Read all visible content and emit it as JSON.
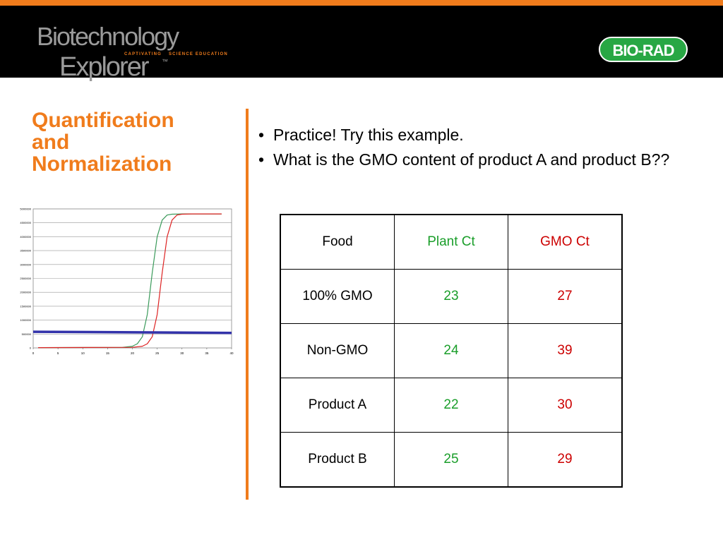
{
  "brand": {
    "title_line1": "Biotechnology",
    "title_line2": "Explorer",
    "trademark": "™",
    "tagline_left": "CAPTIVATING",
    "tagline_right": "SCIENCE EDUCATION",
    "partner_logo": "BIO-RAD",
    "accent_color": "#f07c1c",
    "partner_color": "#28a744"
  },
  "slide": {
    "title_lines": [
      "Quantification",
      "and",
      "Normalization"
    ],
    "bullets": [
      "Practice!  Try this example.",
      "What is the GMO content of product A and product B??"
    ]
  },
  "table": {
    "headers": [
      "Food",
      "Plant Ct",
      "GMO Ct"
    ],
    "rows": [
      [
        "100% GMO",
        "23",
        "27"
      ],
      [
        "Non-GMO",
        "24",
        "39"
      ],
      [
        "Product A",
        "22",
        "30"
      ],
      [
        "Product B",
        "25",
        "29"
      ]
    ],
    "colors": {
      "plant": "#1a9e2a",
      "gmo": "#cc0000"
    }
  },
  "chart_data": {
    "type": "line",
    "title": "",
    "xlabel": "",
    "ylabel": "",
    "xlim": [
      0,
      40
    ],
    "ylim": [
      0,
      5000000
    ],
    "x_ticks": [
      "0",
      "5",
      "10",
      "15",
      "20",
      "25",
      "30",
      "35",
      "40"
    ],
    "y_ticks": [
      "0",
      "500000",
      "1000000",
      "1500000",
      "2000000",
      "2500000",
      "3000000",
      "3500000",
      "4000000",
      "4500000",
      "5000000"
    ],
    "grid": true,
    "legend": "none",
    "series": [
      {
        "color": "#3a9a5a",
        "x": [
          1,
          18,
          20,
          21,
          22,
          23,
          24,
          25,
          26,
          27,
          28,
          30,
          34,
          38
        ],
        "y": [
          10000,
          20000,
          60000,
          150000,
          400000,
          1200000,
          2700000,
          4000000,
          4600000,
          4780000,
          4810000,
          4820000,
          4820000,
          4820000
        ]
      },
      {
        "color": "#dd2222",
        "x": [
          1,
          20,
          22,
          23,
          24,
          25,
          26,
          27,
          28,
          29,
          30,
          32,
          36,
          38
        ],
        "y": [
          10000,
          20000,
          60000,
          150000,
          400000,
          1200000,
          2700000,
          4000000,
          4600000,
          4780000,
          4810000,
          4820000,
          4820000,
          4820000
        ]
      },
      {
        "color": "#3333aa",
        "x": [
          0,
          40
        ],
        "y": [
          580000,
          540000
        ]
      }
    ]
  }
}
